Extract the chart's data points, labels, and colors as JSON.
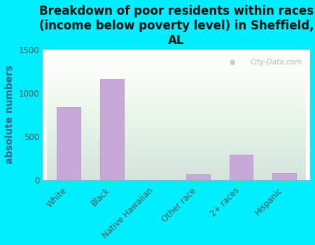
{
  "title": "Breakdown of poor residents within races\n(income below poverty level) in Sheffield,\nAL",
  "categories": [
    "White",
    "Black",
    "Native Hawaiian",
    "Other race",
    "2+ races",
    "Hispanic"
  ],
  "values": [
    840,
    1160,
    0,
    65,
    290,
    75
  ],
  "bar_color": "#c8a8d8",
  "ylabel": "absolute numbers",
  "ylim": [
    0,
    1500
  ],
  "yticks": [
    0,
    500,
    1000,
    1500
  ],
  "bg_outer": "#00eeff",
  "title_fontsize": 12,
  "ylabel_fontsize": 10,
  "tick_fontsize": 8.5,
  "watermark": "City-Data.com"
}
